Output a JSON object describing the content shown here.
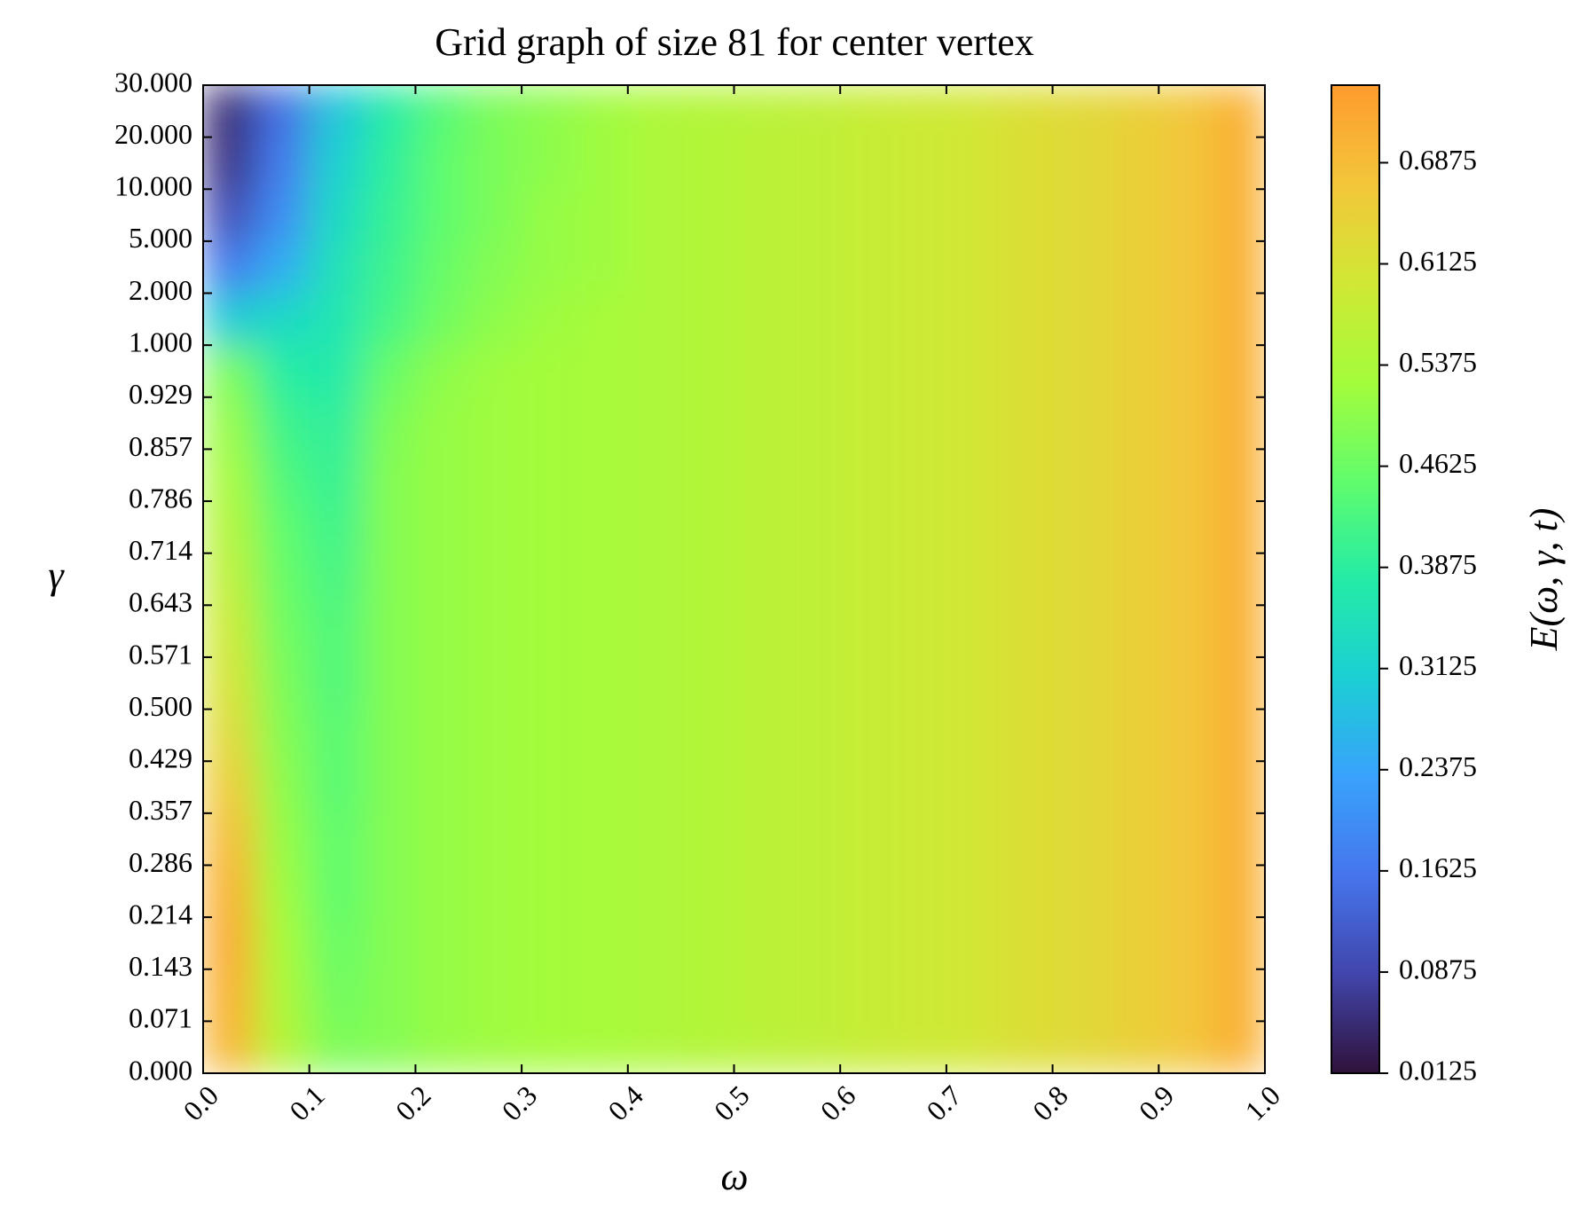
{
  "chart_data": {
    "type": "heatmap",
    "title": "Grid graph of size 81 for center vertex",
    "x_label": "ω",
    "y_label": "γ",
    "colorbar_label": "E(ω, γ, t)",
    "xlim": [
      0,
      1
    ],
    "xticks": [
      {
        "value": 0,
        "label": "0.0"
      },
      0.1,
      0.2,
      0.3,
      0.4,
      0.5,
      0.6,
      0.7,
      0.8,
      0.9,
      {
        "value": 1,
        "label": "1.0"
      }
    ],
    "y_categories": [
      "0.000",
      "0.071",
      "0.143",
      "0.214",
      "0.286",
      "0.357",
      "0.429",
      "0.500",
      "0.571",
      "0.643",
      "0.714",
      "0.786",
      "0.857",
      "0.929",
      "1.000",
      "2.000",
      "5.000",
      "10.000",
      "20.000",
      "30.000"
    ],
    "clim": [
      0.0125,
      0.745
    ],
    "cticks": [
      0.0125,
      0.0875,
      0.1625,
      0.2375,
      0.3125,
      0.3875,
      0.4625,
      0.5375,
      0.6125,
      0.6875
    ],
    "colormap": [
      "#30123b",
      "#4145ab",
      "#4675ed",
      "#39a2fc",
      "#1bcfd4",
      "#24eca6",
      "#61fc6c",
      "#a4fc3b",
      "#d1e834",
      "#f3c63a",
      "#fe9b2d"
    ],
    "z": [
      [
        0.7,
        0.55,
        0.48,
        0.49,
        0.51,
        0.52,
        0.525,
        0.53,
        0.54,
        0.55,
        0.56,
        0.57,
        0.58,
        0.59,
        0.6,
        0.62,
        0.63,
        0.65,
        0.67,
        0.71
      ],
      [
        0.71,
        0.54,
        0.47,
        0.49,
        0.51,
        0.52,
        0.525,
        0.53,
        0.54,
        0.55,
        0.56,
        0.57,
        0.58,
        0.59,
        0.6,
        0.62,
        0.63,
        0.65,
        0.67,
        0.71
      ],
      [
        0.72,
        0.53,
        0.46,
        0.49,
        0.51,
        0.52,
        0.525,
        0.53,
        0.54,
        0.55,
        0.56,
        0.57,
        0.58,
        0.59,
        0.6,
        0.62,
        0.63,
        0.65,
        0.67,
        0.71
      ],
      [
        0.71,
        0.52,
        0.45,
        0.49,
        0.51,
        0.52,
        0.525,
        0.53,
        0.54,
        0.55,
        0.56,
        0.57,
        0.58,
        0.59,
        0.6,
        0.62,
        0.63,
        0.65,
        0.67,
        0.71
      ],
      [
        0.69,
        0.51,
        0.45,
        0.49,
        0.51,
        0.52,
        0.525,
        0.53,
        0.54,
        0.55,
        0.56,
        0.57,
        0.58,
        0.59,
        0.6,
        0.62,
        0.63,
        0.65,
        0.67,
        0.71
      ],
      [
        0.66,
        0.5,
        0.44,
        0.49,
        0.51,
        0.52,
        0.525,
        0.53,
        0.54,
        0.55,
        0.56,
        0.57,
        0.58,
        0.59,
        0.6,
        0.62,
        0.63,
        0.65,
        0.67,
        0.71
      ],
      [
        0.63,
        0.49,
        0.44,
        0.49,
        0.51,
        0.52,
        0.525,
        0.53,
        0.54,
        0.55,
        0.56,
        0.57,
        0.58,
        0.59,
        0.6,
        0.62,
        0.63,
        0.65,
        0.67,
        0.71
      ],
      [
        0.61,
        0.48,
        0.43,
        0.49,
        0.51,
        0.52,
        0.525,
        0.53,
        0.54,
        0.55,
        0.56,
        0.57,
        0.58,
        0.59,
        0.6,
        0.62,
        0.63,
        0.65,
        0.67,
        0.71
      ],
      [
        0.59,
        0.47,
        0.43,
        0.49,
        0.51,
        0.52,
        0.525,
        0.53,
        0.54,
        0.55,
        0.56,
        0.57,
        0.58,
        0.59,
        0.6,
        0.62,
        0.63,
        0.65,
        0.67,
        0.71
      ],
      [
        0.57,
        0.46,
        0.42,
        0.49,
        0.51,
        0.52,
        0.525,
        0.53,
        0.54,
        0.55,
        0.56,
        0.57,
        0.58,
        0.59,
        0.6,
        0.62,
        0.63,
        0.65,
        0.67,
        0.71
      ],
      [
        0.55,
        0.45,
        0.41,
        0.49,
        0.51,
        0.52,
        0.525,
        0.53,
        0.54,
        0.55,
        0.56,
        0.57,
        0.58,
        0.59,
        0.6,
        0.62,
        0.63,
        0.65,
        0.67,
        0.71
      ],
      [
        0.53,
        0.43,
        0.4,
        0.49,
        0.51,
        0.52,
        0.525,
        0.53,
        0.54,
        0.55,
        0.56,
        0.57,
        0.58,
        0.59,
        0.6,
        0.62,
        0.63,
        0.65,
        0.67,
        0.71
      ],
      [
        0.51,
        0.41,
        0.39,
        0.48,
        0.51,
        0.52,
        0.525,
        0.53,
        0.54,
        0.55,
        0.56,
        0.57,
        0.58,
        0.59,
        0.6,
        0.62,
        0.63,
        0.65,
        0.67,
        0.71
      ],
      [
        0.48,
        0.38,
        0.37,
        0.46,
        0.5,
        0.52,
        0.525,
        0.53,
        0.54,
        0.55,
        0.56,
        0.57,
        0.58,
        0.59,
        0.6,
        0.62,
        0.63,
        0.65,
        0.67,
        0.71
      ],
      [
        0.3,
        0.33,
        0.36,
        0.42,
        0.47,
        0.5,
        0.52,
        0.53,
        0.54,
        0.55,
        0.56,
        0.57,
        0.58,
        0.59,
        0.6,
        0.62,
        0.63,
        0.65,
        0.67,
        0.71
      ],
      [
        0.17,
        0.25,
        0.35,
        0.41,
        0.46,
        0.49,
        0.51,
        0.52,
        0.54,
        0.55,
        0.56,
        0.57,
        0.58,
        0.59,
        0.6,
        0.62,
        0.63,
        0.65,
        0.67,
        0.71
      ],
      [
        0.1,
        0.2,
        0.33,
        0.4,
        0.45,
        0.48,
        0.51,
        0.52,
        0.54,
        0.55,
        0.56,
        0.57,
        0.58,
        0.59,
        0.6,
        0.62,
        0.63,
        0.65,
        0.67,
        0.71
      ],
      [
        0.06,
        0.17,
        0.31,
        0.39,
        0.45,
        0.48,
        0.5,
        0.52,
        0.54,
        0.55,
        0.56,
        0.57,
        0.58,
        0.59,
        0.6,
        0.62,
        0.63,
        0.65,
        0.67,
        0.71
      ],
      [
        0.05,
        0.15,
        0.29,
        0.38,
        0.44,
        0.48,
        0.5,
        0.52,
        0.54,
        0.55,
        0.56,
        0.57,
        0.58,
        0.59,
        0.6,
        0.62,
        0.63,
        0.65,
        0.67,
        0.71
      ]
    ]
  }
}
